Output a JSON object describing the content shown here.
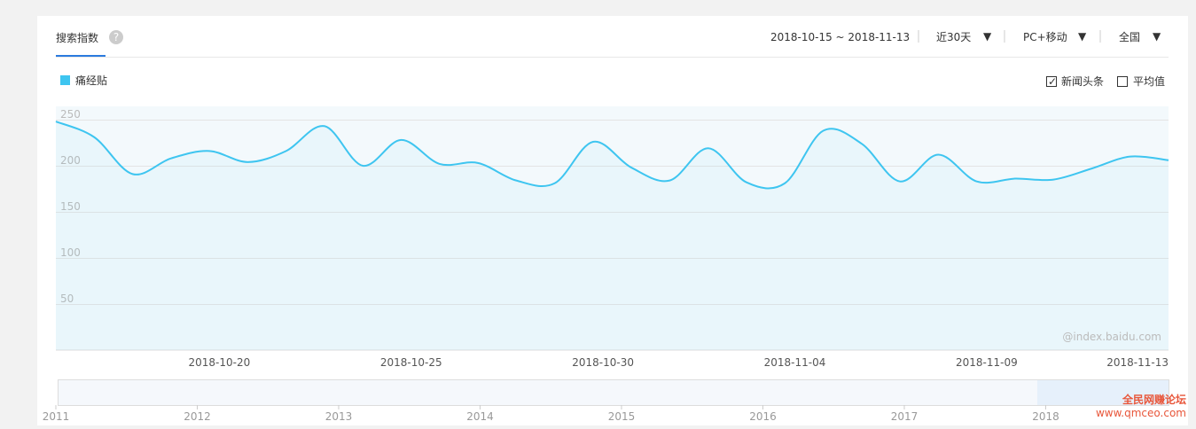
{
  "header": {
    "tab": "搜索指数",
    "date_range": "2018-10-15 ~ 2018-11-13",
    "period": "近30天",
    "device": "PC+移动",
    "region": "全国"
  },
  "options": [
    "新闻头条",
    "平均值"
  ],
  "watermark": "@index.baidu.com",
  "overview": {
    "years": [
      "2011",
      "2012",
      "2013",
      "2014",
      "2015",
      "2016",
      "2017",
      "2018"
    ]
  },
  "site": {
    "name": "全民网赚论坛",
    "url": "www.qmceo.com"
  },
  "chart_data": {
    "type": "line",
    "categories": [
      null,
      null,
      null,
      null,
      null,
      "2018-10-20",
      null,
      null,
      null,
      null,
      "2018-10-25",
      null,
      null,
      null,
      null,
      "2018-10-30",
      null,
      null,
      null,
      null,
      "2018-11-04",
      null,
      null,
      null,
      null,
      "2018-11-09",
      null,
      null,
      null,
      "2018-11-13"
    ],
    "series": [
      {
        "name": "痛经贴",
        "color": "#3ec5f0",
        "values": [
          248,
          231,
          191,
          208,
          216,
          204,
          216,
          243,
          200,
          228,
          202,
          203,
          184,
          181,
          226,
          198,
          184,
          219,
          182,
          181,
          238,
          224,
          183,
          212,
          183,
          186,
          185,
          197,
          210,
          206
        ]
      }
    ],
    "ylim": [
      0,
      250
    ],
    "yticks": [
      50,
      100,
      150,
      200,
      250
    ],
    "grid": true
  }
}
